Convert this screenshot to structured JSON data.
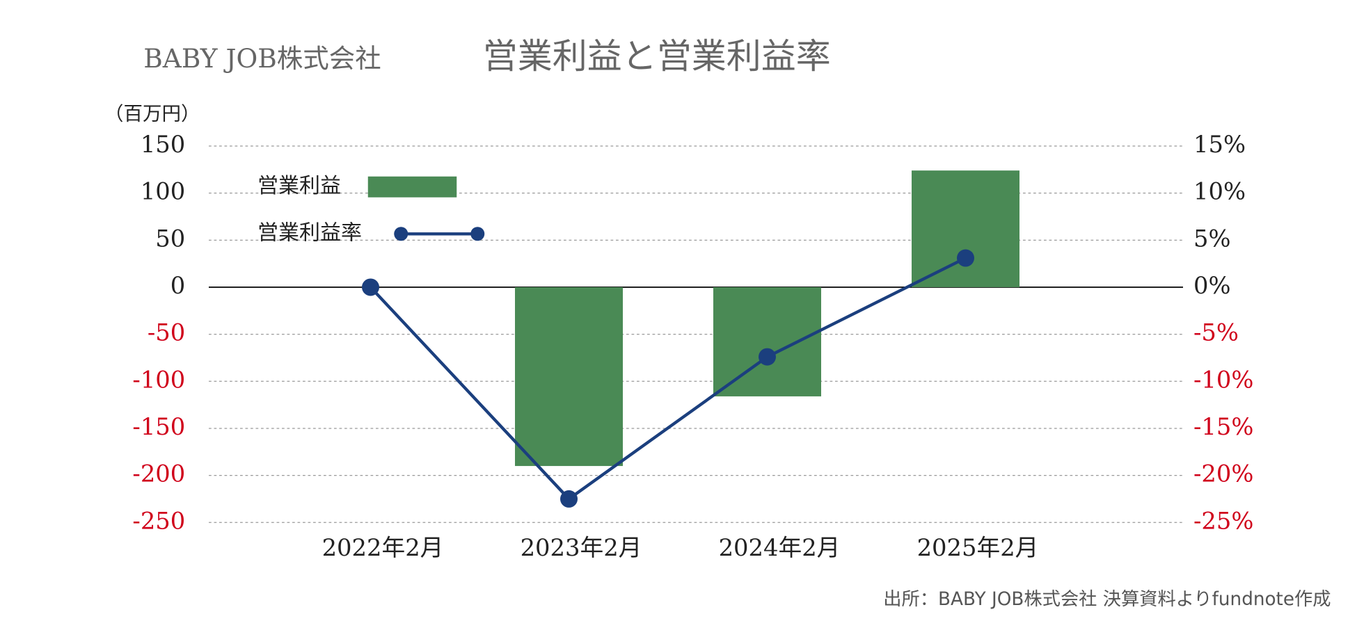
{
  "chart_data": {
    "type": "bar",
    "company": "BABY JOB株式会社",
    "title": "営業利益と営業利益率",
    "y_unit_label": "（百万円）",
    "source": "出所：BABY JOB株式会社 決算資料よりfundnote作成",
    "categories": [
      "2022年2月",
      "2023年2月",
      "2024年2月",
      "2025年2月"
    ],
    "series": [
      {
        "name": "営業利益",
        "type": "bar",
        "color": "#4a8a55",
        "values": [
          0,
          -190,
          -116,
          124
        ]
      },
      {
        "name": "営業利益率",
        "type": "line",
        "axis": "y2",
        "color": "#1b3f7e",
        "values": [
          0,
          -22.5,
          -7.4,
          3.1
        ]
      }
    ],
    "ylim": [
      -250,
      150
    ],
    "yticks": [
      150,
      100,
      50,
      0,
      -50,
      -100,
      -150,
      -200,
      -250
    ],
    "y2lim": [
      -25,
      15
    ],
    "y2ticks": [
      {
        "value": 15,
        "label": "15%"
      },
      {
        "value": 10,
        "label": "10%"
      },
      {
        "value": 5,
        "label": "5%"
      },
      {
        "value": 0,
        "label": "0%"
      },
      {
        "value": -5,
        "label": "-5%"
      },
      {
        "value": -10,
        "label": "-10%"
      },
      {
        "value": -15,
        "label": "-15%"
      },
      {
        "value": -20,
        "label": "-20%"
      },
      {
        "value": -25,
        "label": "-25%"
      }
    ],
    "grid": true,
    "negative_tick_color": "#d0021b"
  }
}
